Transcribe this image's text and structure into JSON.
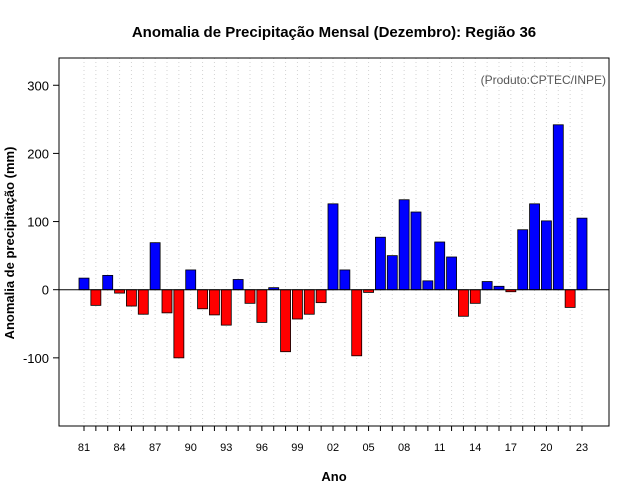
{
  "chart_data": {
    "type": "bar",
    "title": "Anomalia de Precipitação Mensal (Dezembro): Região 36",
    "xlabel": "Ano",
    "ylabel": "Anomalia de precipitação (mm)",
    "credit": "(Produto:CPTEC/INPE)",
    "ylim": [
      -200,
      340
    ],
    "yticks": [
      -100,
      0,
      100,
      200,
      300
    ],
    "x_tick_labels": [
      "81",
      "84",
      "87",
      "90",
      "93",
      "96",
      "99",
      "02",
      "05",
      "08",
      "11",
      "14",
      "17",
      "20",
      "23"
    ],
    "x_tick_every": 3,
    "categories": [
      "1981",
      "1982",
      "1983",
      "1984",
      "1985",
      "1986",
      "1987",
      "1988",
      "1989",
      "1990",
      "1991",
      "1992",
      "1993",
      "1994",
      "1995",
      "1996",
      "1997",
      "1998",
      "1999",
      "2000",
      "2001",
      "2002",
      "2003",
      "2004",
      "2005",
      "2006",
      "2007",
      "2008",
      "2009",
      "2010",
      "2011",
      "2012",
      "2013",
      "2014",
      "2015",
      "2016",
      "2017",
      "2018",
      "2019",
      "2020",
      "2021",
      "2022",
      "2023"
    ],
    "values": [
      17,
      -23,
      21,
      -5,
      -24,
      -36,
      69,
      -34,
      -100,
      29,
      -28,
      -37,
      -52,
      15,
      -20,
      -48,
      3,
      -91,
      -43,
      -36,
      -19,
      126,
      29,
      -97,
      -4,
      77,
      50,
      132,
      114,
      13,
      70,
      48,
      -39,
      -20,
      12,
      5,
      -3,
      88,
      126,
      101,
      242,
      -26,
      105
    ],
    "colors": {
      "positive": "#0000ff",
      "negative": "#ff0000"
    },
    "grid": "vertical dotted"
  }
}
